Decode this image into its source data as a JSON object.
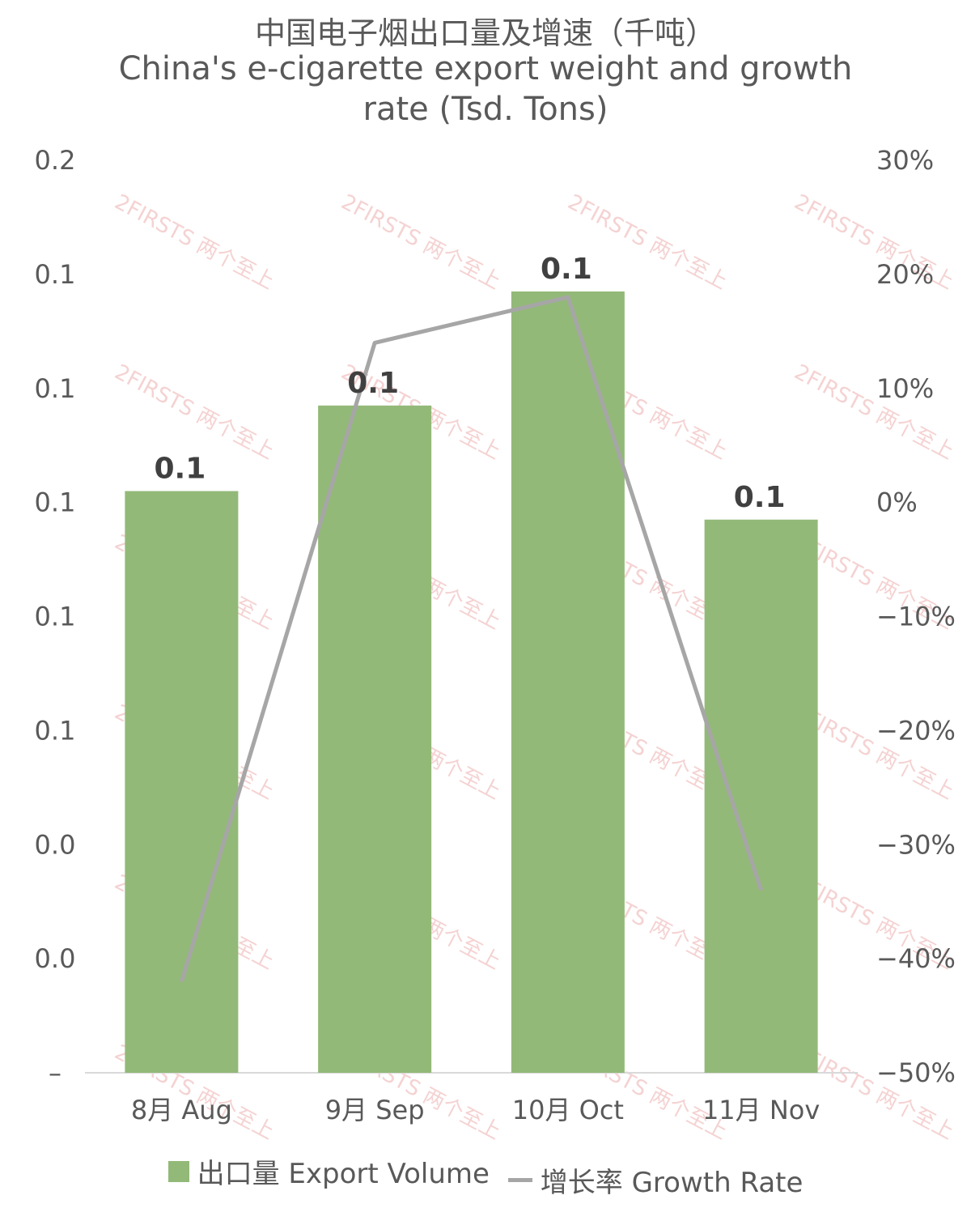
{
  "chart_data": {
    "type": "bar",
    "title": "中国电子烟出口量及增速（千吨）",
    "subtitle_lines": [
      "China's e-cigarette export weight and growth",
      "rate (Tsd. Tons)"
    ],
    "categories": [
      "8月 Aug",
      "9月 Sep",
      "10月 Oct",
      "11月 Nov"
    ],
    "series": [
      {
        "name": "出口量 Export Volume",
        "type": "bar",
        "axis": "left",
        "values": [
          0.102,
          0.117,
          0.137,
          0.097
        ],
        "data_labels": [
          "0.1",
          "0.1",
          "0.1",
          "0.1"
        ],
        "color": "#93b978"
      },
      {
        "name": "增长率 Growth Rate",
        "type": "line",
        "axis": "right",
        "values": [
          -0.42,
          0.14,
          0.18,
          -0.34
        ],
        "color": "#a6a6a6"
      }
    ],
    "y_left": {
      "ylim": [
        0,
        0.16
      ],
      "ticks": [
        0,
        0.02,
        0.04,
        0.06,
        0.08,
        0.1,
        0.12,
        0.14,
        0.16
      ],
      "tick_labels": [
        "–",
        "0.0",
        "0.0",
        "0.1",
        "0.1",
        "0.1",
        "0.1",
        "0.1",
        "0.2"
      ]
    },
    "y_right": {
      "ylim": [
        -0.5,
        0.3
      ],
      "ticks": [
        -0.5,
        -0.4,
        -0.3,
        -0.2,
        -0.1,
        0,
        0.1,
        0.2,
        0.3
      ],
      "tick_labels": [
        "−50%",
        "−40%",
        "−30%",
        "−20%",
        "−10%",
        "0%",
        "10%",
        "20%",
        "30%"
      ]
    },
    "grid": false,
    "legend_position": "bottom"
  },
  "watermark": {
    "text": "2FIRSTS 两个至上"
  },
  "colors": {
    "bar": "#93b978",
    "line": "#a6a6a6",
    "text": "#595959",
    "axis": "#d9d9d9"
  }
}
